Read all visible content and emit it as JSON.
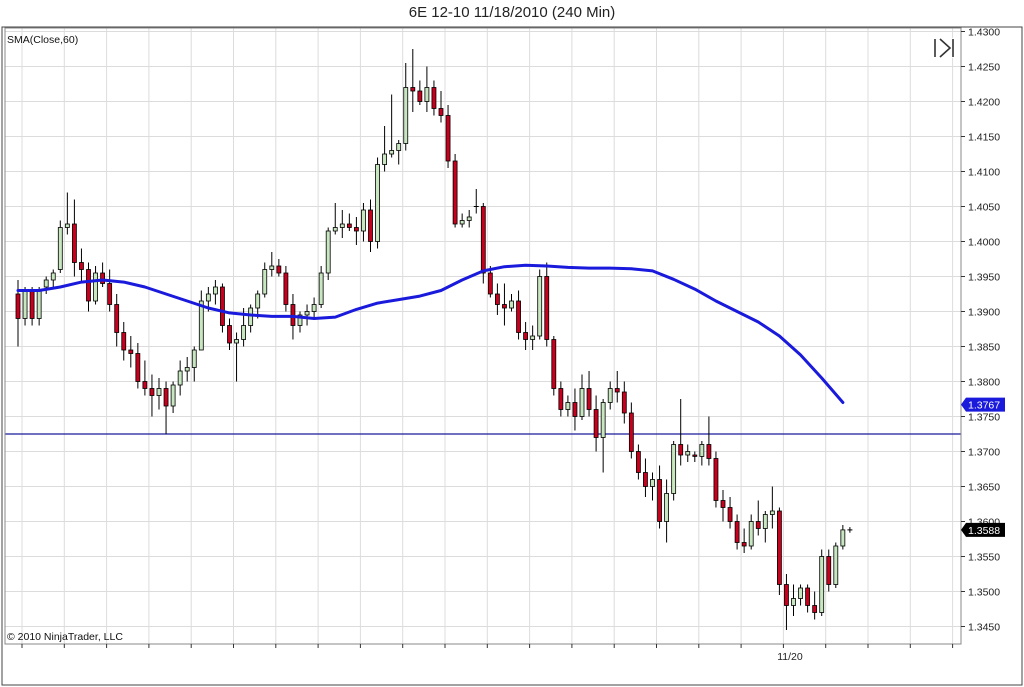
{
  "title": "6E 12-10  11/18/2010 (240 Min)",
  "indicator_label": "SMA(Close,60)",
  "copyright": "© 2010 NinjaTrader, LLC",
  "toolbar_icon": "skip-forward-icon",
  "colors": {
    "up_candle": "#c8e6c0",
    "down_candle": "#c8001e",
    "sma": "#1a1adc",
    "reference_line": "#1a1a9c",
    "grid": "#dcdcdc",
    "sma_badge": "#1a1adc",
    "last_price_badge": "#000000"
  },
  "chart_data": {
    "type": "candlestick",
    "title": "6E 12-10  11/18/2010 (240 Min)",
    "ylim": [
      1.3425,
      1.4305
    ],
    "y_ticks": [
      "1.4300",
      "1.4250",
      "1.4200",
      "1.4150",
      "1.4100",
      "1.4050",
      "1.4000",
      "1.3950",
      "1.3900",
      "1.3850",
      "1.3800",
      "1.3750",
      "1.3700",
      "1.3650",
      "1.3600",
      "1.3550",
      "1.3500",
      "1.3450"
    ],
    "x_label_text": "11/20",
    "x_label_index": 109.5,
    "grid": true,
    "horizontal_line": 1.3725,
    "sma_badge": "1.3767",
    "last_price_badge": "1.3588",
    "candles": [
      [
        1.3925,
        1.3945,
        1.385,
        1.389
      ],
      [
        1.389,
        1.3935,
        1.388,
        1.393
      ],
      [
        1.393,
        1.3935,
        1.388,
        1.389
      ],
      [
        1.389,
        1.3935,
        1.388,
        1.393
      ],
      [
        1.3935,
        1.395,
        1.3925,
        1.3945
      ],
      [
        1.3945,
        1.396,
        1.3935,
        1.3955
      ],
      [
        1.396,
        1.403,
        1.3955,
        1.402
      ],
      [
        1.402,
        1.407,
        1.401,
        1.4025
      ],
      [
        1.4025,
        1.406,
        1.395,
        1.397
      ],
      [
        1.397,
        1.399,
        1.394,
        1.396
      ],
      [
        1.396,
        1.397,
        1.39,
        1.3915
      ],
      [
        1.3915,
        1.3965,
        1.391,
        1.3955
      ],
      [
        1.3955,
        1.397,
        1.3935,
        1.394
      ],
      [
        1.394,
        1.396,
        1.39,
        1.391
      ],
      [
        1.391,
        1.3925,
        1.385,
        1.387
      ],
      [
        1.387,
        1.3885,
        1.383,
        1.3845
      ],
      [
        1.3845,
        1.3865,
        1.382,
        1.384
      ],
      [
        1.384,
        1.3855,
        1.379,
        1.38
      ],
      [
        1.38,
        1.383,
        1.378,
        1.379
      ],
      [
        1.379,
        1.381,
        1.375,
        1.378
      ],
      [
        1.378,
        1.3805,
        1.376,
        1.379
      ],
      [
        1.379,
        1.38,
        1.3725,
        1.3765
      ],
      [
        1.3765,
        1.38,
        1.3755,
        1.3795
      ],
      [
        1.3795,
        1.383,
        1.378,
        1.3815
      ],
      [
        1.3815,
        1.3835,
        1.38,
        1.382
      ],
      [
        1.382,
        1.385,
        1.38,
        1.3845
      ],
      [
        1.3845,
        1.393,
        1.3845,
        1.3915
      ],
      [
        1.3915,
        1.3935,
        1.39,
        1.3925
      ],
      [
        1.3925,
        1.3945,
        1.391,
        1.3935
      ],
      [
        1.3935,
        1.394,
        1.387,
        1.388
      ],
      [
        1.388,
        1.389,
        1.3845,
        1.3855
      ],
      [
        1.3855,
        1.387,
        1.38,
        1.386
      ],
      [
        1.386,
        1.3905,
        1.385,
        1.388
      ],
      [
        1.388,
        1.391,
        1.387,
        1.3905
      ],
      [
        1.3905,
        1.393,
        1.389,
        1.3925
      ],
      [
        1.3925,
        1.397,
        1.392,
        1.396
      ],
      [
        1.396,
        1.3985,
        1.395,
        1.3965
      ],
      [
        1.3965,
        1.3975,
        1.395,
        1.3955
      ],
      [
        1.3955,
        1.3965,
        1.39,
        1.391
      ],
      [
        1.391,
        1.3925,
        1.386,
        1.388
      ],
      [
        1.388,
        1.39,
        1.387,
        1.3895
      ],
      [
        1.3895,
        1.391,
        1.388,
        1.39
      ],
      [
        1.39,
        1.392,
        1.389,
        1.391
      ],
      [
        1.391,
        1.3965,
        1.3905,
        1.3955
      ],
      [
        1.3955,
        1.402,
        1.3945,
        1.4015
      ],
      [
        1.4015,
        1.4055,
        1.401,
        1.402
      ],
      [
        1.402,
        1.4045,
        1.4005,
        1.4025
      ],
      [
        1.4025,
        1.404,
        1.4015,
        1.402
      ],
      [
        1.402,
        1.4035,
        1.3995,
        1.4015
      ],
      [
        1.4015,
        1.4055,
        1.4,
        1.4045
      ],
      [
        1.4045,
        1.406,
        1.3985,
        1.4
      ],
      [
        1.4,
        1.412,
        1.399,
        1.411
      ],
      [
        1.411,
        1.4165,
        1.41,
        1.4125
      ],
      [
        1.4125,
        1.421,
        1.412,
        1.413
      ],
      [
        1.413,
        1.4145,
        1.411,
        1.414
      ],
      [
        1.414,
        1.4255,
        1.413,
        1.422
      ],
      [
        1.422,
        1.4275,
        1.4185,
        1.4215
      ],
      [
        1.4215,
        1.423,
        1.4195,
        1.42
      ],
      [
        1.42,
        1.425,
        1.4185,
        1.422
      ],
      [
        1.422,
        1.423,
        1.418,
        1.419
      ],
      [
        1.419,
        1.4215,
        1.417,
        1.418
      ],
      [
        1.418,
        1.4195,
        1.4105,
        1.4115
      ],
      [
        1.4115,
        1.4125,
        1.402,
        1.4025
      ],
      [
        1.4025,
        1.404,
        1.402,
        1.403
      ],
      [
        1.403,
        1.4045,
        1.402,
        1.4035
      ],
      [
        1.405,
        1.4075,
        1.404,
        1.405
      ],
      [
        1.405,
        1.4055,
        1.394,
        1.3955
      ],
      [
        1.3955,
        1.3965,
        1.392,
        1.3925
      ],
      [
        1.3925,
        1.394,
        1.3895,
        1.391
      ],
      [
        1.391,
        1.394,
        1.388,
        1.3905
      ],
      [
        1.3905,
        1.3925,
        1.39,
        1.3915
      ],
      [
        1.3915,
        1.393,
        1.386,
        1.387
      ],
      [
        1.387,
        1.3885,
        1.3845,
        1.386
      ],
      [
        1.386,
        1.388,
        1.3845,
        1.3865
      ],
      [
        1.3865,
        1.396,
        1.386,
        1.395
      ],
      [
        1.395,
        1.397,
        1.385,
        1.386
      ],
      [
        1.386,
        1.3865,
        1.378,
        1.379
      ],
      [
        1.379,
        1.38,
        1.375,
        1.376
      ],
      [
        1.376,
        1.378,
        1.375,
        1.377
      ],
      [
        1.377,
        1.379,
        1.373,
        1.375
      ],
      [
        1.375,
        1.381,
        1.3745,
        1.379
      ],
      [
        1.379,
        1.3815,
        1.375,
        1.376
      ],
      [
        1.376,
        1.378,
        1.37,
        1.372
      ],
      [
        1.372,
        1.3775,
        1.367,
        1.377
      ],
      [
        1.377,
        1.38,
        1.376,
        1.379
      ],
      [
        1.379,
        1.3815,
        1.377,
        1.3785
      ],
      [
        1.3785,
        1.38,
        1.374,
        1.3755
      ],
      [
        1.3755,
        1.377,
        1.369,
        1.37
      ],
      [
        1.37,
        1.371,
        1.366,
        1.367
      ],
      [
        1.367,
        1.369,
        1.3635,
        1.365
      ],
      [
        1.365,
        1.367,
        1.363,
        1.366
      ],
      [
        1.366,
        1.368,
        1.359,
        1.36
      ],
      [
        1.36,
        1.366,
        1.357,
        1.364
      ],
      [
        1.364,
        1.3715,
        1.363,
        1.371
      ],
      [
        1.371,
        1.3775,
        1.368,
        1.3695
      ],
      [
        1.3695,
        1.371,
        1.3685,
        1.37
      ],
      [
        1.3695,
        1.37,
        1.3685,
        1.3693
      ],
      [
        1.3693,
        1.3715,
        1.368,
        1.371
      ],
      [
        1.371,
        1.375,
        1.368,
        1.369
      ],
      [
        1.369,
        1.37,
        1.362,
        1.363
      ],
      [
        1.363,
        1.3645,
        1.36,
        1.362
      ],
      [
        1.362,
        1.3635,
        1.359,
        1.36
      ],
      [
        1.36,
        1.361,
        1.356,
        1.357
      ],
      [
        1.357,
        1.359,
        1.3555,
        1.3565
      ],
      [
        1.3565,
        1.361,
        1.356,
        1.36
      ],
      [
        1.36,
        1.363,
        1.358,
        1.359
      ],
      [
        1.359,
        1.3615,
        1.357,
        1.361
      ],
      [
        1.361,
        1.365,
        1.359,
        1.3615
      ],
      [
        1.3615,
        1.362,
        1.3495,
        1.351
      ],
      [
        1.351,
        1.3525,
        1.3445,
        1.348
      ],
      [
        1.348,
        1.351,
        1.3465,
        1.349
      ],
      [
        1.349,
        1.351,
        1.348,
        1.3505
      ],
      [
        1.3505,
        1.351,
        1.347,
        1.348
      ],
      [
        1.348,
        1.35,
        1.346,
        1.347
      ],
      [
        1.347,
        1.356,
        1.3465,
        1.355
      ],
      [
        1.355,
        1.356,
        1.35,
        1.351
      ],
      [
        1.351,
        1.357,
        1.3505,
        1.3565
      ],
      [
        1.3565,
        1.3595,
        1.356,
        1.3588
      ],
      [
        1.3588,
        1.3592,
        1.3584,
        1.3588
      ]
    ],
    "sma_points": [
      [
        0,
        1.393
      ],
      [
        3,
        1.393
      ],
      [
        6,
        1.3935
      ],
      [
        9,
        1.3942
      ],
      [
        12,
        1.3945
      ],
      [
        15,
        1.3942
      ],
      [
        18,
        1.3935
      ],
      [
        21,
        1.3925
      ],
      [
        24,
        1.3915
      ],
      [
        27,
        1.3905
      ],
      [
        30,
        1.3898
      ],
      [
        33,
        1.3895
      ],
      [
        36,
        1.3893
      ],
      [
        39,
        1.3893
      ],
      [
        42,
        1.389
      ],
      [
        45,
        1.3892
      ],
      [
        48,
        1.3903
      ],
      [
        51,
        1.3912
      ],
      [
        54,
        1.3917
      ],
      [
        57,
        1.3922
      ],
      [
        60,
        1.393
      ],
      [
        63,
        1.3945
      ],
      [
        66,
        1.3958
      ],
      [
        69,
        1.3964
      ],
      [
        72,
        1.3966
      ],
      [
        75,
        1.3965
      ],
      [
        78,
        1.3963
      ],
      [
        81,
        1.3962
      ],
      [
        84,
        1.3962
      ],
      [
        87,
        1.3961
      ],
      [
        90,
        1.3958
      ],
      [
        93,
        1.3946
      ],
      [
        96,
        1.3932
      ],
      [
        99,
        1.3915
      ],
      [
        102,
        1.39
      ],
      [
        105,
        1.3885
      ],
      [
        108,
        1.3865
      ],
      [
        111,
        1.3838
      ],
      [
        114,
        1.3805
      ],
      [
        117,
        1.377
      ]
    ]
  }
}
